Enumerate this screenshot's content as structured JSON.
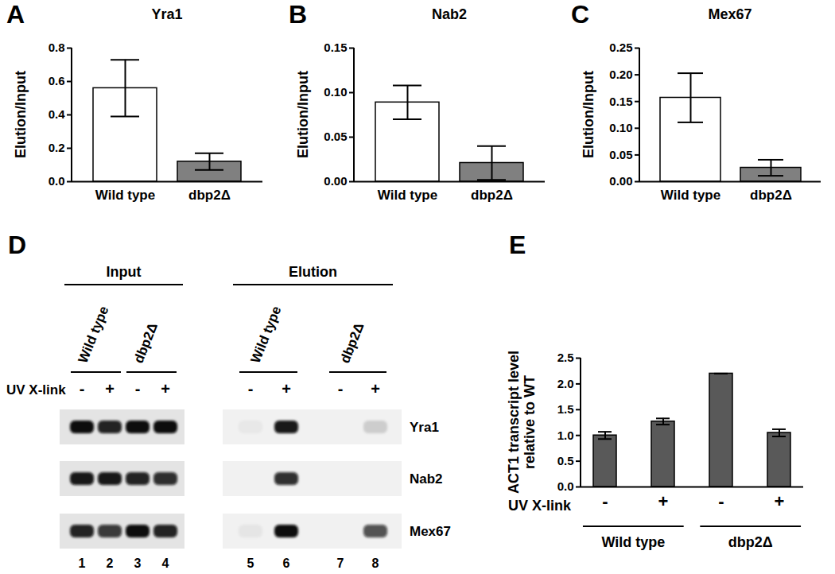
{
  "chart_data": [
    {
      "type": "bar",
      "panel": "A",
      "title": "Yra1",
      "y_label": "Elution/Input",
      "categories": [
        "Wild type",
        "dbp2Δ"
      ],
      "values": [
        0.56,
        0.12
      ],
      "errors": [
        0.17,
        0.05
      ],
      "colors": [
        "#ffffff",
        "#808080"
      ],
      "ylim": [
        0,
        0.8
      ],
      "yticks": [
        {
          "value": 0,
          "label": "0.0"
        },
        0.2,
        0.4,
        0.6,
        0.8
      ]
    },
    {
      "type": "bar",
      "panel": "B",
      "title": "Nab2",
      "y_label": "Elution/Input",
      "categories": [
        "Wild type",
        "dbp2Δ"
      ],
      "values": [
        0.089,
        0.021
      ],
      "errors": [
        0.019,
        0.019
      ],
      "colors": [
        "#ffffff",
        "#808080"
      ],
      "ylim": [
        0,
        0.15
      ],
      "yticks": [
        {
          "value": 0,
          "label": "0.00"
        },
        0.05,
        {
          "value": 0.1,
          "label": "0.10"
        },
        0.15
      ]
    },
    {
      "type": "bar",
      "panel": "C",
      "title": "Mex67",
      "y_label": "Elution/Input",
      "categories": [
        "Wild type",
        "dbp2Δ"
      ],
      "values": [
        0.157,
        0.026
      ],
      "errors": [
        0.046,
        0.015
      ],
      "colors": [
        "#ffffff",
        "#808080"
      ],
      "ylim": [
        0,
        0.25
      ],
      "yticks": [
        {
          "value": 0,
          "label": "0.00"
        },
        0.05,
        {
          "value": 0.1,
          "label": "0.10"
        },
        0.15,
        {
          "value": 0.2,
          "label": "0.20"
        },
        0.25
      ]
    },
    {
      "type": "bar",
      "panel": "E",
      "y_label": "ACT1 transcript level\nrelative to WT",
      "x_label": "UV X-link",
      "categories": [
        "-",
        "+",
        "-",
        "+"
      ],
      "groups": [
        "Wild type",
        "Wild type",
        "dbp2Δ",
        "dbp2Δ"
      ],
      "values": [
        1.0,
        1.27,
        2.2,
        1.05
      ],
      "errors": [
        0.07,
        0.06,
        0,
        0.07
      ],
      "color": "#595959",
      "ylim": [
        0,
        2.5
      ],
      "yticks": [
        {
          "value": 0,
          "label": "0.0"
        },
        0.5,
        {
          "value": 1,
          "label": "1.0"
        },
        1.5,
        {
          "value": 2,
          "label": "2.0"
        },
        2.5
      ]
    }
  ],
  "blot": {
    "panel": "D",
    "treatment_label": "UV X-link",
    "sections": [
      {
        "label": "Input",
        "conditions": [
          {
            "label": "Wild type",
            "treatment": [
              "-",
              "+"
            ]
          },
          {
            "label": "dbp2Δ",
            "treatment": [
              "-",
              "+"
            ]
          }
        ]
      },
      {
        "label": "Elution",
        "conditions": [
          {
            "label": "Wild type",
            "treatment": [
              "-",
              "+"
            ]
          },
          {
            "label": "dbp2Δ",
            "treatment": [
              "-",
              "+"
            ]
          }
        ]
      }
    ],
    "lane_numbers": [
      1,
      2,
      3,
      4,
      5,
      6,
      7,
      8
    ],
    "proteins": [
      {
        "name": "Yra1",
        "band_intensity": [
          1.0,
          0.9,
          1.0,
          1.0,
          0.04,
          0.95,
          0,
          0.15
        ]
      },
      {
        "name": "Nab2",
        "band_intensity": [
          0.95,
          0.95,
          0.9,
          0.85,
          0,
          0.85,
          0,
          0
        ]
      },
      {
        "name": "Mex67",
        "band_intensity": [
          0.9,
          0.8,
          1.0,
          0.9,
          0.05,
          1.0,
          0,
          0.7
        ]
      }
    ]
  }
}
